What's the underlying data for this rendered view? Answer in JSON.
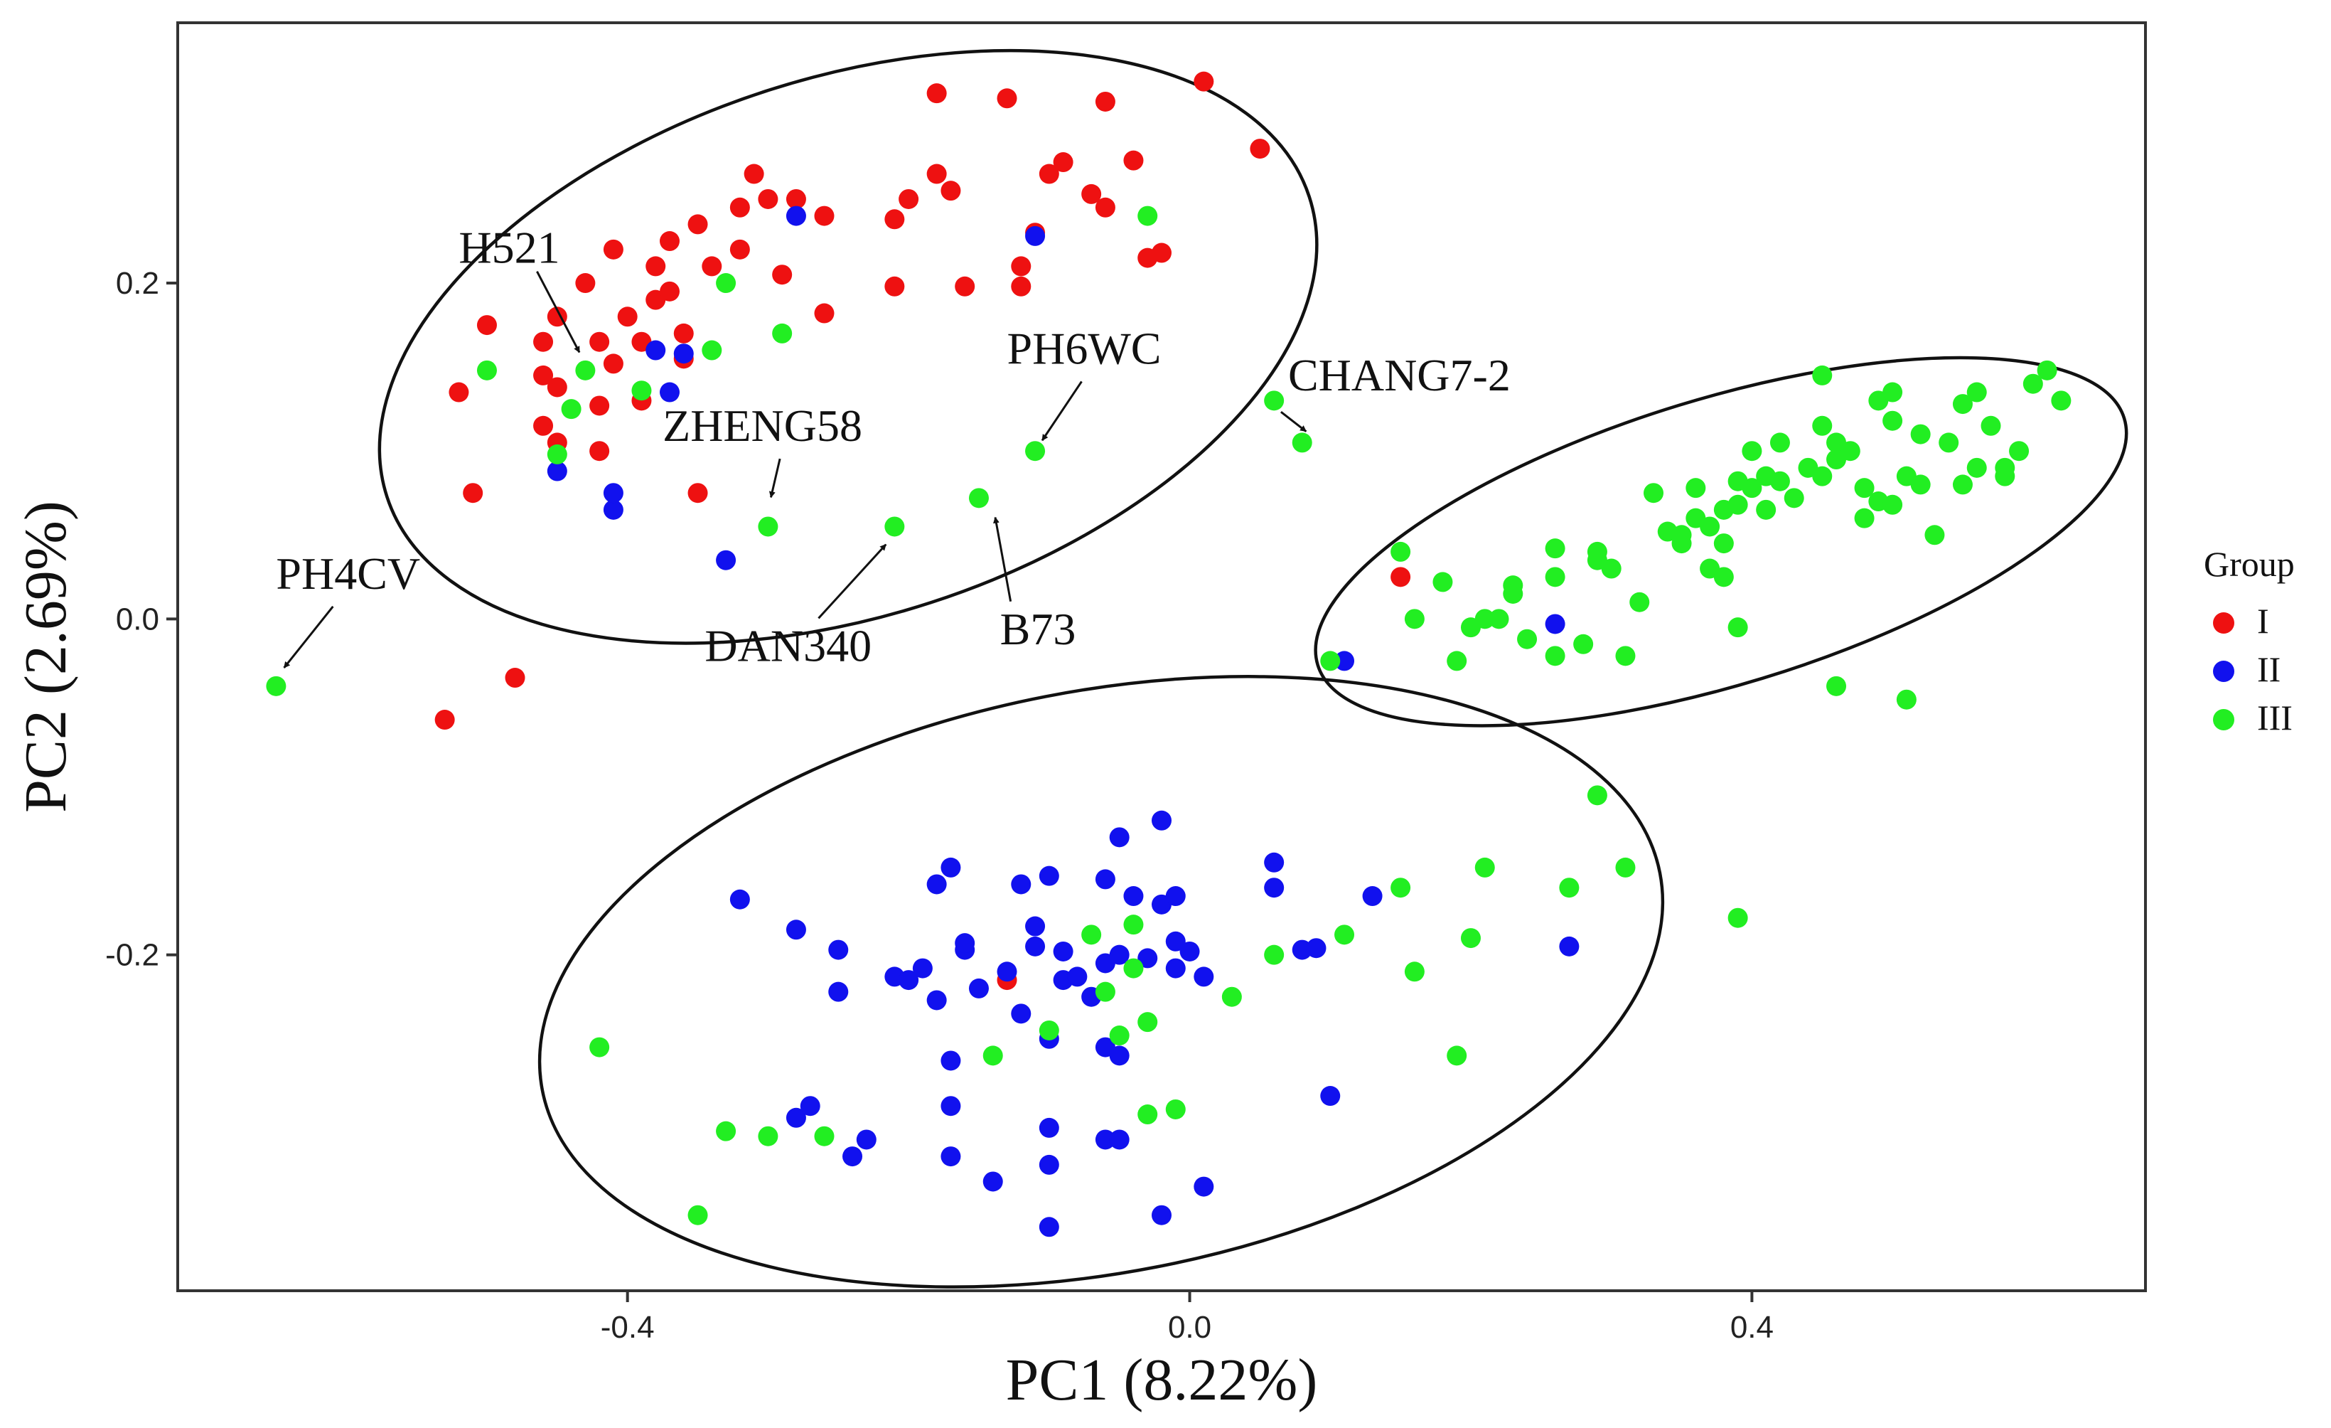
{
  "chart_data": {
    "type": "scatter",
    "title": "",
    "xlabel": "PC1 (8.22%)",
    "ylabel": "PC2 (2.69%)",
    "xlim": [
      -0.72,
      0.68
    ],
    "ylim": [
      -0.4,
      0.355
    ],
    "xticks": [
      -0.4,
      0.0,
      0.4
    ],
    "xtick_labels": [
      "-0.4",
      "0.0",
      "0.4"
    ],
    "yticks": [
      -0.2,
      0.0,
      0.2
    ],
    "ytick_labels": [
      "-0.2",
      "0.0",
      "0.2"
    ],
    "grid": false,
    "legend": {
      "title": "Group",
      "position": "right",
      "entries": [
        {
          "label": "I",
          "color": "#ee1111"
        },
        {
          "label": "II",
          "color": "#1111ee"
        },
        {
          "label": "III",
          "color": "#22ee22"
        }
      ]
    },
    "series": [
      {
        "name": "I",
        "color": "#ee1111",
        "points": [
          [
            -0.53,
            -0.06
          ],
          [
            -0.48,
            -0.035
          ],
          [
            -0.51,
            0.075
          ],
          [
            -0.52,
            0.135
          ],
          [
            -0.5,
            0.175
          ],
          [
            -0.46,
            0.165
          ],
          [
            -0.46,
            0.145
          ],
          [
            -0.45,
            0.138
          ],
          [
            -0.46,
            0.115
          ],
          [
            -0.45,
            0.105
          ],
          [
            -0.43,
            0.2
          ],
          [
            -0.45,
            0.18
          ],
          [
            -0.41,
            0.22
          ],
          [
            -0.42,
            0.165
          ],
          [
            -0.41,
            0.152
          ],
          [
            -0.42,
            0.127
          ],
          [
            -0.4,
            0.18
          ],
          [
            -0.39,
            0.13
          ],
          [
            -0.39,
            0.165
          ],
          [
            -0.38,
            0.19
          ],
          [
            -0.38,
            0.21
          ],
          [
            -0.37,
            0.225
          ],
          [
            -0.37,
            0.195
          ],
          [
            -0.36,
            0.17
          ],
          [
            -0.36,
            0.155
          ],
          [
            -0.35,
            0.235
          ],
          [
            -0.34,
            0.21
          ],
          [
            -0.35,
            0.075
          ],
          [
            -0.32,
            0.22
          ],
          [
            -0.32,
            0.245
          ],
          [
            -0.3,
            0.25
          ],
          [
            -0.31,
            0.265
          ],
          [
            -0.29,
            0.205
          ],
          [
            -0.28,
            0.25
          ],
          [
            -0.26,
            0.24
          ],
          [
            -0.26,
            0.182
          ],
          [
            -0.21,
            0.198
          ],
          [
            -0.21,
            0.238
          ],
          [
            -0.2,
            0.25
          ],
          [
            -0.18,
            0.265
          ],
          [
            -0.17,
            0.255
          ],
          [
            -0.18,
            0.313
          ],
          [
            -0.16,
            0.198
          ],
          [
            -0.13,
            0.31
          ],
          [
            -0.12,
            0.21
          ],
          [
            -0.12,
            0.198
          ],
          [
            -0.11,
            0.23
          ],
          [
            -0.1,
            0.265
          ],
          [
            -0.09,
            0.272
          ],
          [
            -0.06,
            0.308
          ],
          [
            -0.07,
            0.253
          ],
          [
            -0.06,
            0.245
          ],
          [
            -0.04,
            0.273
          ],
          [
            -0.03,
            0.215
          ],
          [
            -0.02,
            0.218
          ],
          [
            0.01,
            0.32
          ],
          [
            0.05,
            0.28
          ],
          [
            -0.42,
            0.1
          ],
          [
            0.15,
            0.025
          ],
          [
            -0.13,
            -0.215
          ]
        ]
      },
      {
        "name": "II",
        "color": "#1111ee",
        "points": [
          [
            -0.45,
            0.088
          ],
          [
            -0.41,
            0.065
          ],
          [
            -0.41,
            0.075
          ],
          [
            -0.38,
            0.16
          ],
          [
            -0.37,
            0.135
          ],
          [
            -0.36,
            0.158
          ],
          [
            -0.33,
            0.035
          ],
          [
            -0.28,
            0.24
          ],
          [
            -0.11,
            0.228
          ],
          [
            0.11,
            -0.025
          ],
          [
            0.26,
            -0.003
          ],
          [
            -0.32,
            -0.167
          ],
          [
            -0.28,
            -0.185
          ],
          [
            -0.28,
            -0.297
          ],
          [
            -0.27,
            -0.29
          ],
          [
            -0.25,
            -0.222
          ],
          [
            -0.25,
            -0.197
          ],
          [
            -0.24,
            -0.32
          ],
          [
            -0.23,
            -0.31
          ],
          [
            -0.21,
            -0.213
          ],
          [
            -0.2,
            -0.215
          ],
          [
            -0.19,
            -0.208
          ],
          [
            -0.18,
            -0.158
          ],
          [
            -0.18,
            -0.227
          ],
          [
            -0.17,
            -0.148
          ],
          [
            -0.16,
            -0.197
          ],
          [
            -0.16,
            -0.193
          ],
          [
            -0.17,
            -0.263
          ],
          [
            -0.17,
            -0.29
          ],
          [
            -0.17,
            -0.32
          ],
          [
            -0.15,
            -0.22
          ],
          [
            -0.14,
            -0.335
          ],
          [
            -0.13,
            -0.21
          ],
          [
            -0.12,
            -0.235
          ],
          [
            -0.12,
            -0.158
          ],
          [
            -0.11,
            -0.183
          ],
          [
            -0.11,
            -0.195
          ],
          [
            -0.1,
            -0.153
          ],
          [
            -0.1,
            -0.25
          ],
          [
            -0.1,
            -0.303
          ],
          [
            -0.1,
            -0.325
          ],
          [
            -0.1,
            -0.362
          ],
          [
            -0.09,
            -0.215
          ],
          [
            -0.09,
            -0.198
          ],
          [
            -0.08,
            -0.213
          ],
          [
            -0.07,
            -0.225
          ],
          [
            -0.06,
            -0.255
          ],
          [
            -0.06,
            -0.31
          ],
          [
            -0.06,
            -0.205
          ],
          [
            -0.06,
            -0.155
          ],
          [
            -0.05,
            -0.13
          ],
          [
            -0.05,
            -0.26
          ],
          [
            -0.05,
            -0.31
          ],
          [
            -0.04,
            -0.165
          ],
          [
            -0.03,
            -0.202
          ],
          [
            -0.02,
            -0.12
          ],
          [
            -0.02,
            -0.17
          ],
          [
            -0.01,
            -0.192
          ],
          [
            -0.01,
            -0.208
          ],
          [
            0.0,
            -0.198
          ],
          [
            0.01,
            -0.213
          ],
          [
            0.01,
            -0.338
          ],
          [
            0.06,
            -0.145
          ],
          [
            0.06,
            -0.16
          ],
          [
            0.08,
            -0.197
          ],
          [
            0.09,
            -0.196
          ],
          [
            0.1,
            -0.284
          ],
          [
            0.13,
            -0.165
          ],
          [
            -0.01,
            -0.165
          ],
          [
            -0.02,
            -0.355
          ],
          [
            0.27,
            -0.195
          ],
          [
            -0.05,
            -0.2
          ]
        ]
      },
      {
        "name": "III",
        "color": "#22ee22",
        "points": [
          [
            -0.65,
            -0.04
          ],
          [
            -0.5,
            0.148
          ],
          [
            -0.45,
            0.098
          ],
          [
            -0.43,
            0.148
          ],
          [
            -0.44,
            0.125
          ],
          [
            -0.39,
            0.136
          ],
          [
            -0.34,
            0.16
          ],
          [
            -0.33,
            0.2
          ],
          [
            -0.3,
            0.055
          ],
          [
            -0.29,
            0.17
          ],
          [
            -0.21,
            0.055
          ],
          [
            -0.15,
            0.072
          ],
          [
            -0.11,
            0.1
          ],
          [
            -0.03,
            0.24
          ],
          [
            0.06,
            0.13
          ],
          [
            0.08,
            0.105
          ],
          [
            0.1,
            -0.025
          ],
          [
            0.15,
            0.04
          ],
          [
            0.16,
            0.0
          ],
          [
            0.18,
            0.022
          ],
          [
            0.19,
            -0.025
          ],
          [
            0.2,
            -0.005
          ],
          [
            0.21,
            0.0
          ],
          [
            0.22,
            0.0
          ],
          [
            0.23,
            0.02
          ],
          [
            0.23,
            0.015
          ],
          [
            0.24,
            -0.012
          ],
          [
            0.26,
            0.042
          ],
          [
            0.26,
            0.025
          ],
          [
            0.26,
            -0.022
          ],
          [
            0.28,
            -0.015
          ],
          [
            0.29,
            0.035
          ],
          [
            0.29,
            0.04
          ],
          [
            0.3,
            0.03
          ],
          [
            0.31,
            -0.022
          ],
          [
            0.32,
            0.01
          ],
          [
            0.33,
            0.075
          ],
          [
            0.34,
            0.052
          ],
          [
            0.35,
            0.05
          ],
          [
            0.35,
            0.045
          ],
          [
            0.36,
            0.06
          ],
          [
            0.36,
            0.078
          ],
          [
            0.37,
            0.055
          ],
          [
            0.37,
            0.03
          ],
          [
            0.38,
            0.065
          ],
          [
            0.38,
            0.045
          ],
          [
            0.38,
            0.025
          ],
          [
            0.39,
            0.082
          ],
          [
            0.39,
            0.068
          ],
          [
            0.39,
            -0.005
          ],
          [
            0.4,
            0.1
          ],
          [
            0.4,
            0.078
          ],
          [
            0.41,
            0.085
          ],
          [
            0.41,
            0.065
          ],
          [
            0.42,
            0.105
          ],
          [
            0.42,
            0.082
          ],
          [
            0.43,
            0.072
          ],
          [
            0.44,
            0.09
          ],
          [
            0.45,
            0.085
          ],
          [
            0.45,
            0.145
          ],
          [
            0.45,
            0.115
          ],
          [
            0.46,
            0.105
          ],
          [
            0.46,
            0.095
          ],
          [
            0.47,
            0.1
          ],
          [
            0.48,
            0.06
          ],
          [
            0.48,
            0.078
          ],
          [
            0.49,
            0.07
          ],
          [
            0.49,
            0.13
          ],
          [
            0.5,
            0.068
          ],
          [
            0.5,
            0.135
          ],
          [
            0.5,
            0.118
          ],
          [
            0.51,
            0.085
          ],
          [
            0.52,
            0.11
          ],
          [
            0.52,
            0.08
          ],
          [
            0.53,
            0.05
          ],
          [
            0.54,
            0.105
          ],
          [
            0.55,
            0.08
          ],
          [
            0.55,
            0.128
          ],
          [
            0.56,
            0.09
          ],
          [
            0.56,
            0.135
          ],
          [
            0.57,
            0.115
          ],
          [
            0.58,
            0.085
          ],
          [
            0.58,
            0.09
          ],
          [
            0.59,
            0.1
          ],
          [
            0.6,
            0.14
          ],
          [
            0.61,
            0.148
          ],
          [
            0.62,
            0.13
          ],
          [
            0.46,
            -0.04
          ],
          [
            0.51,
            -0.048
          ],
          [
            -0.42,
            -0.255
          ],
          [
            -0.33,
            -0.305
          ],
          [
            -0.3,
            -0.308
          ],
          [
            -0.26,
            -0.308
          ],
          [
            -0.14,
            -0.26
          ],
          [
            -0.1,
            -0.245
          ],
          [
            -0.06,
            -0.222
          ],
          [
            -0.05,
            -0.248
          ],
          [
            -0.04,
            -0.182
          ],
          [
            -0.04,
            -0.208
          ],
          [
            -0.03,
            -0.295
          ],
          [
            -0.03,
            -0.24
          ],
          [
            -0.01,
            -0.292
          ],
          [
            0.03,
            -0.225
          ],
          [
            0.06,
            -0.2
          ],
          [
            0.11,
            -0.188
          ],
          [
            0.15,
            -0.16
          ],
          [
            0.16,
            -0.21
          ],
          [
            0.19,
            -0.26
          ],
          [
            0.2,
            -0.19
          ],
          [
            0.21,
            -0.148
          ],
          [
            0.27,
            -0.16
          ],
          [
            0.29,
            -0.105
          ],
          [
            0.31,
            -0.148
          ],
          [
            0.39,
            -0.178
          ],
          [
            -0.35,
            -0.355
          ],
          [
            -0.07,
            -0.188
          ]
        ]
      }
    ],
    "ellipses": [
      {
        "cx": -0.243,
        "cy": 0.162,
        "rx": 0.345,
        "ry": 0.16,
        "angle": 18
      },
      {
        "cx": 0.378,
        "cy": 0.046,
        "rx": 0.3,
        "ry": 0.085,
        "angle": 17
      },
      {
        "cx": -0.063,
        "cy": -0.216,
        "rx": 0.405,
        "ry": 0.173,
        "angle": 11
      }
    ],
    "annotations": [
      {
        "text": "H521",
        "point": [
          -0.43,
          0.152
        ],
        "text_at": [
          -0.52,
          0.212
        ]
      },
      {
        "text": "PH6WC",
        "point": [
          -0.11,
          0.1
        ],
        "text_at": [
          -0.13,
          0.152
        ]
      },
      {
        "text": "CHANG7-2",
        "point": [
          0.09,
          0.107
        ],
        "text_at": [
          0.07,
          0.136
        ]
      },
      {
        "text": "ZHENG58",
        "point": [
          -0.3,
          0.065
        ],
        "text_at": [
          -0.375,
          0.106
        ]
      },
      {
        "text": "PH4CV",
        "point": [
          -0.65,
          -0.035
        ],
        "text_at": [
          -0.65,
          0.018
        ]
      },
      {
        "text": "DAN340",
        "point": [
          -0.21,
          0.05
        ],
        "text_at": [
          -0.345,
          -0.025
        ]
      },
      {
        "text": "B73",
        "point": [
          -0.14,
          0.068
        ],
        "text_at": [
          -0.135,
          -0.015
        ]
      }
    ]
  }
}
